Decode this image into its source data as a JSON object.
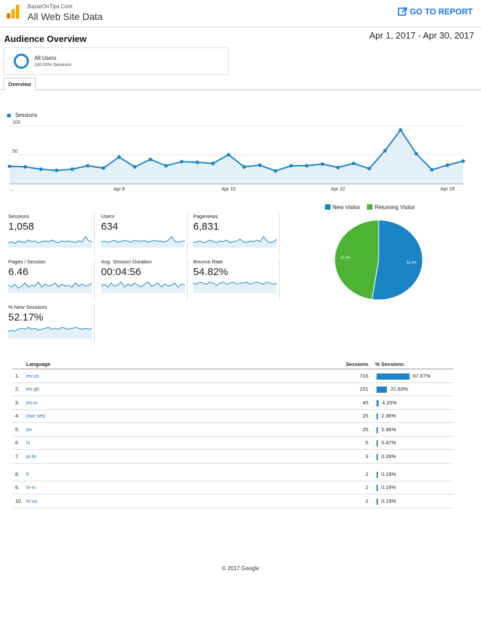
{
  "header": {
    "site_name": "BazarOnTips.Com",
    "view_name": "All Web Site Data",
    "go_to_report": "GO TO REPORT",
    "accent": "#1a73e8"
  },
  "page": {
    "title": "Audience Overview",
    "date_range": "Apr 1, 2017 - Apr 30, 2017"
  },
  "segment": {
    "name": "All Users",
    "sub": "100.00% Sessions"
  },
  "tabs": [
    {
      "label": "Overview",
      "active": true
    }
  ],
  "chart_data": [
    {
      "type": "line",
      "series": [
        {
          "name": "Sessions",
          "values": [
            30,
            29,
            25,
            23,
            25,
            31,
            27,
            46,
            29,
            42,
            31,
            38,
            37,
            35,
            50,
            29,
            32,
            22,
            31,
            31,
            34,
            28,
            35,
            26,
            57,
            93,
            52,
            24,
            32,
            39
          ]
        }
      ],
      "x": [
        1,
        2,
        3,
        4,
        5,
        6,
        7,
        8,
        9,
        10,
        11,
        12,
        13,
        14,
        15,
        16,
        17,
        18,
        19,
        20,
        21,
        22,
        23,
        24,
        25,
        26,
        27,
        28,
        29,
        30
      ],
      "xtick_labels": [
        "...",
        "Apr 8",
        "Apr 15",
        "Apr 22",
        "Apr 29"
      ],
      "ytick_labels": [
        "100",
        "50"
      ],
      "ylim": [
        0,
        100
      ],
      "grid": true,
      "color": "#1a84c7"
    },
    {
      "type": "pie",
      "slices": [
        {
          "name": "New Visitor",
          "value": 52.4,
          "label": "52.4%",
          "color": "#1a84c7"
        },
        {
          "name": "Returning Visitor",
          "value": 47.6,
          "label": "47.6%",
          "color": "#4cb335"
        }
      ]
    }
  ],
  "metrics": [
    {
      "label": "Sessions",
      "value": "1,058",
      "spark": [
        5,
        6,
        4,
        7,
        6,
        5,
        8,
        6,
        7,
        5,
        6,
        7,
        6,
        8,
        6,
        5,
        7,
        6,
        7,
        6,
        5,
        7,
        6,
        12,
        7,
        6
      ]
    },
    {
      "label": "Users",
      "value": "634",
      "spark": [
        5,
        6,
        5,
        6,
        7,
        5,
        6,
        7,
        6,
        5,
        7,
        6,
        6,
        7,
        5,
        6,
        7,
        6,
        6,
        5,
        7,
        11,
        6,
        5,
        6,
        7
      ]
    },
    {
      "label": "Pageviews",
      "value": "6,831",
      "spark": [
        5,
        6,
        7,
        5,
        6,
        8,
        6,
        5,
        7,
        6,
        8,
        5,
        6,
        7,
        9,
        6,
        5,
        7,
        6,
        8,
        6,
        12,
        7,
        5,
        6,
        9
      ]
    },
    {
      "label": "Pages / Session",
      "value": "6.46",
      "spark": [
        7,
        5,
        8,
        4,
        6,
        9,
        5,
        7,
        6,
        10,
        5,
        8,
        6,
        7,
        9,
        5,
        8,
        6,
        7,
        5,
        9,
        6,
        8,
        6,
        7,
        9
      ]
    },
    {
      "label": "Avg. Session Duration",
      "value": "00:04:56",
      "spark": [
        6,
        8,
        5,
        9,
        6,
        7,
        10,
        5,
        8,
        6,
        9,
        7,
        5,
        8,
        10,
        6,
        7,
        9,
        5,
        8,
        6,
        7,
        9,
        5,
        8,
        7
      ]
    },
    {
      "label": "Bounce Rate",
      "value": "54.82%",
      "spark": [
        8,
        7,
        9,
        8,
        7,
        9,
        8,
        6,
        8,
        9,
        7,
        8,
        9,
        7,
        8,
        8,
        9,
        7,
        8,
        9,
        8,
        7,
        9,
        8,
        7,
        8
      ]
    },
    {
      "label": "% New Sessions",
      "value": "52.17%",
      "spark": [
        7,
        8,
        7,
        9,
        10,
        9,
        11,
        9,
        10,
        8,
        9,
        10,
        11,
        9,
        10,
        9,
        11,
        10,
        9,
        10,
        11,
        10,
        9,
        10,
        9,
        10
      ]
    }
  ],
  "language_table": {
    "headers": {
      "language": "Language",
      "sessions": "Sessions",
      "pct": "% Sessions"
    },
    "rows": [
      {
        "num": "1.",
        "lang": "en-us",
        "sessions": "716",
        "pct": "67.67%",
        "pct_value": 67.67
      },
      {
        "num": "2.",
        "lang": "en-gb",
        "sessions": "231",
        "pct": "21.83%",
        "pct_value": 21.83
      },
      {
        "num": "3.",
        "lang": "en-in",
        "sessions": "45",
        "pct": "4.25%",
        "pct_value": 4.25
      },
      {
        "num": "4.",
        "lang": "(not set)",
        "sessions": "25",
        "pct": "2.36%",
        "pct_value": 2.36
      },
      {
        "num": "5.",
        "lang": "en",
        "sessions": "25",
        "pct": "2.36%",
        "pct_value": 2.36
      },
      {
        "num": "6.",
        "lang": "hi",
        "sessions": "5",
        "pct": "0.47%",
        "pct_value": 0.47
      },
      {
        "num": "7.",
        "lang": "pt-br",
        "sessions": "3",
        "pct": "0.28%",
        "pct_value": 0.28
      },
      {
        "num": "8.",
        "lang": "fr",
        "sessions": "2",
        "pct": "0.19%",
        "pct_value": 0.19
      },
      {
        "num": "9.",
        "lang": "hi-in",
        "sessions": "2",
        "pct": "0.19%",
        "pct_value": 0.19
      },
      {
        "num": "10.",
        "lang": "hi-us",
        "sessions": "2",
        "pct": "0.19%",
        "pct_value": 0.19
      }
    ]
  },
  "footer": {
    "text": "© 2017 Google"
  }
}
